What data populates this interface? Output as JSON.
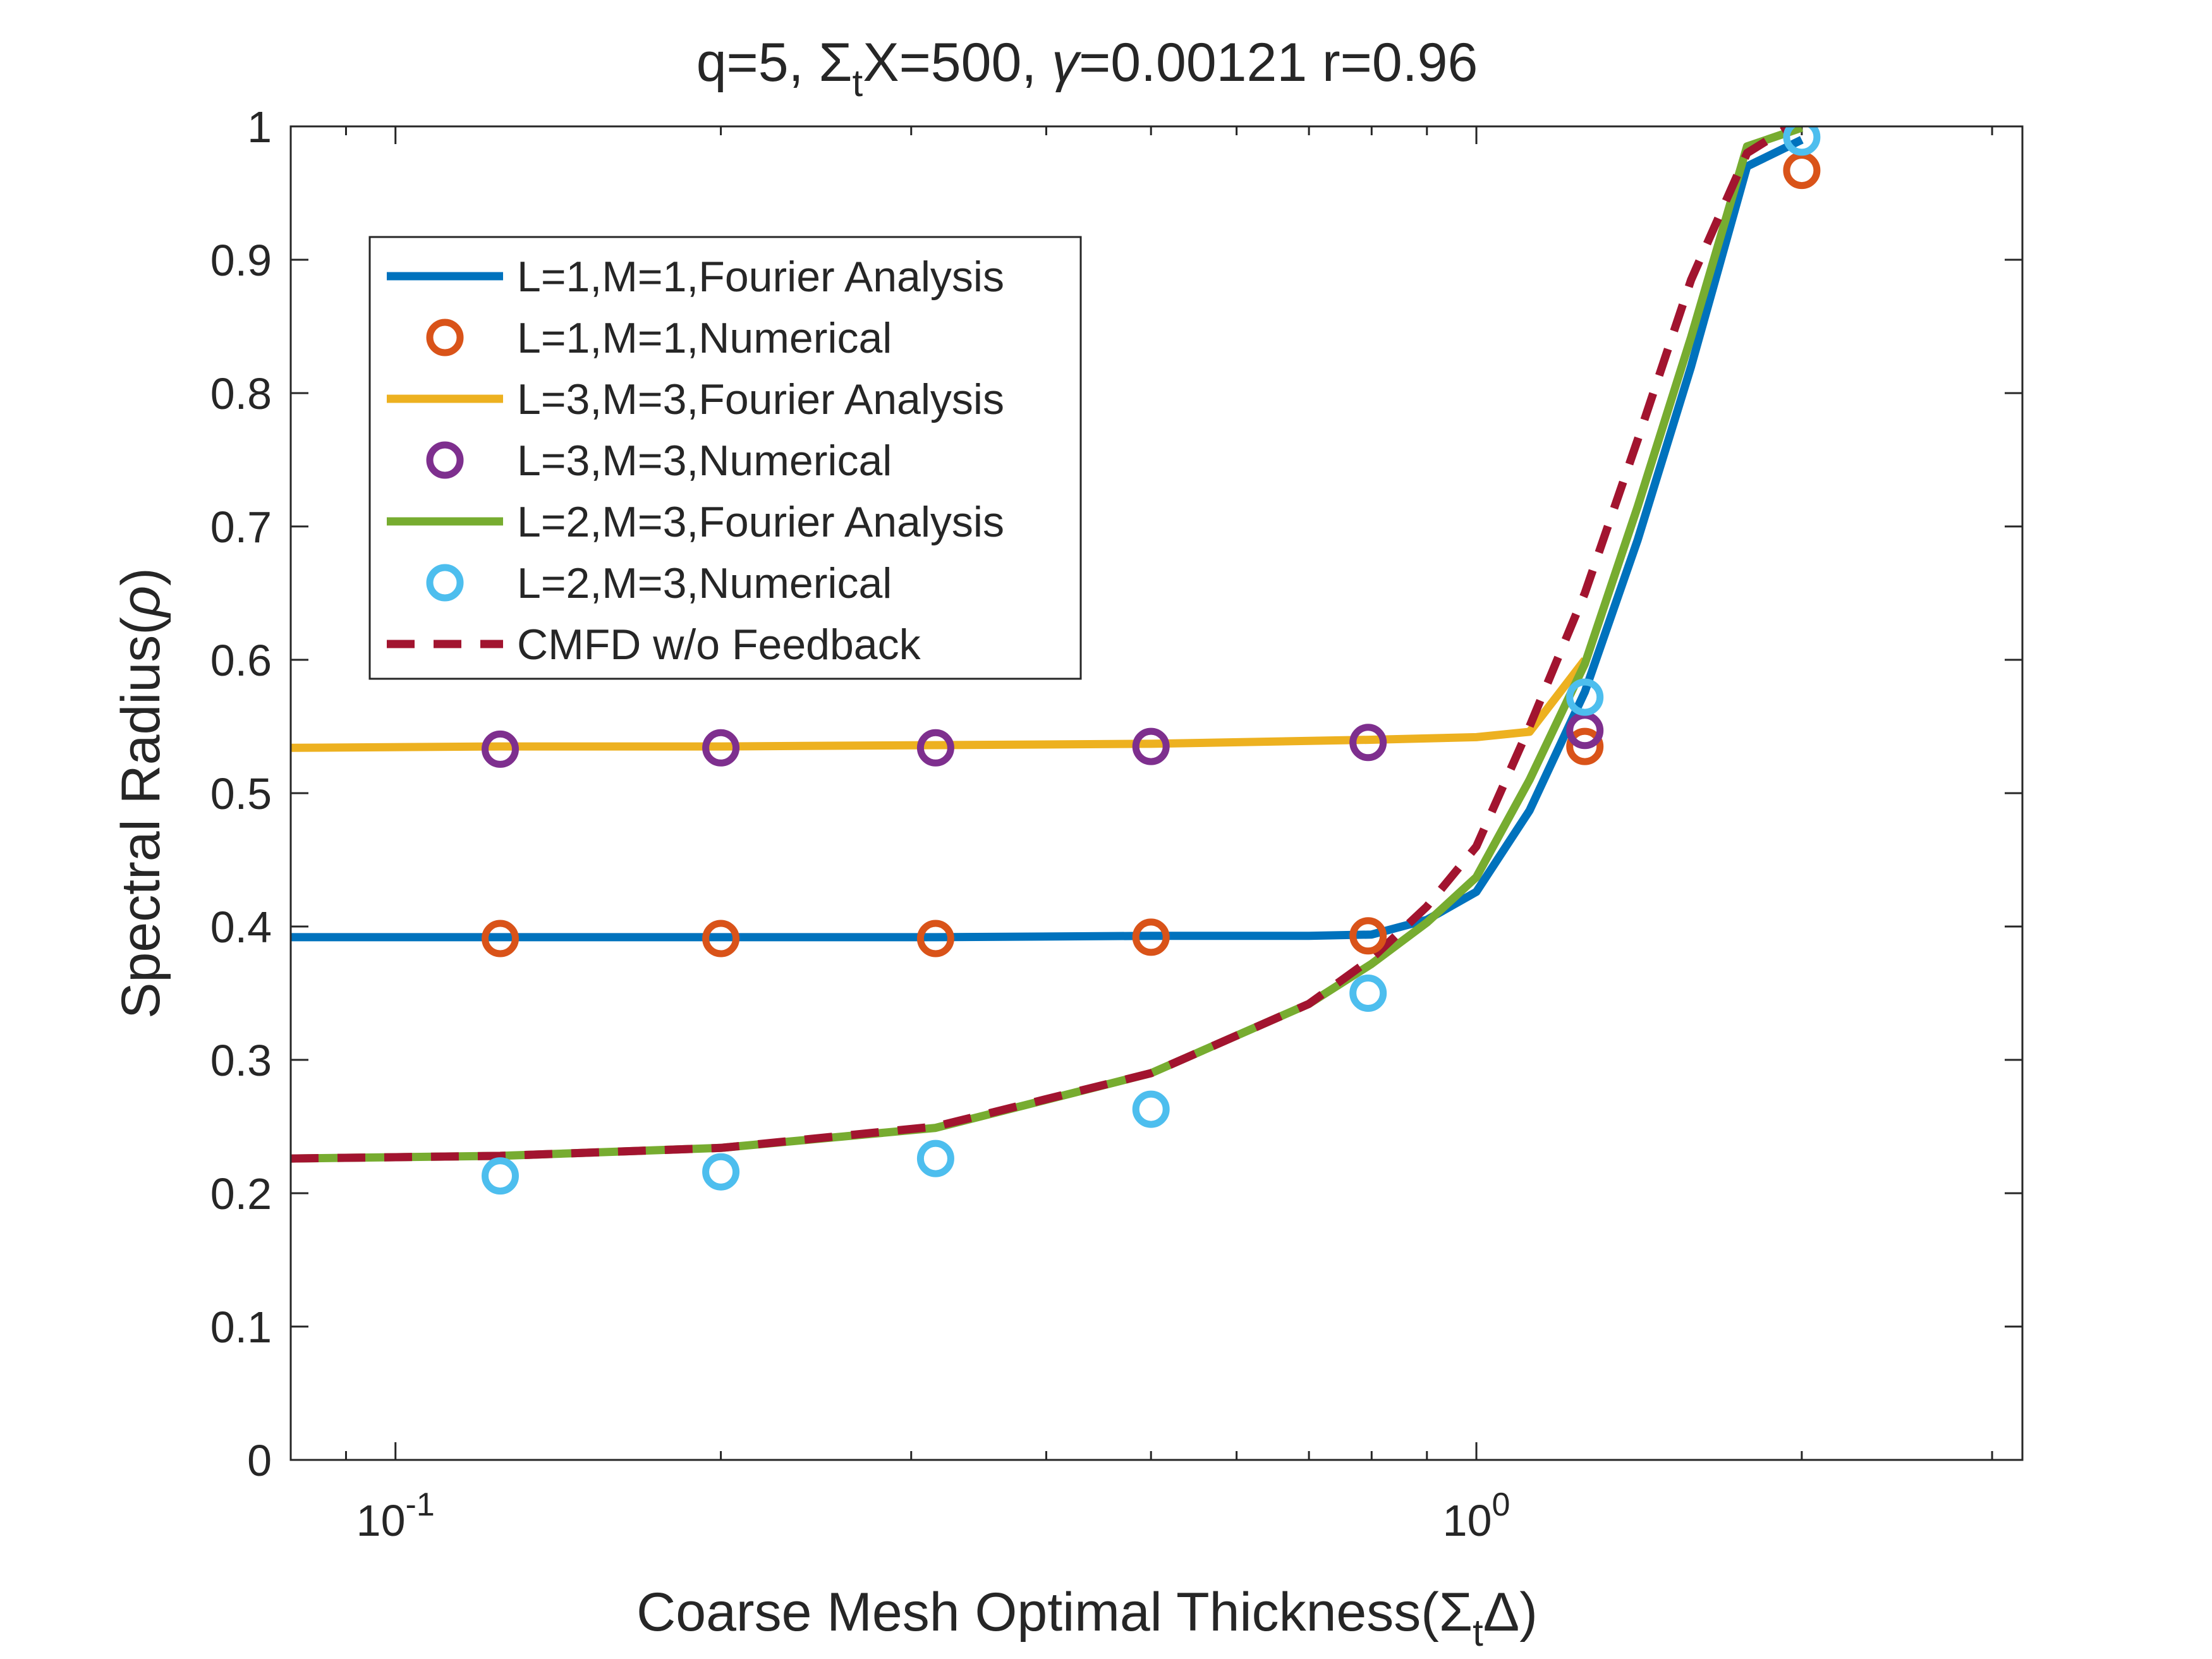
{
  "chart_data": {
    "type": "line",
    "title": "q=5, ΣtX=500,  γ=0.00121 r=0.96",
    "title_parts": {
      "a": "q=5, ",
      "sigma": "Σ",
      "sub": "t",
      "b": "X=500,  ",
      "gamma": "γ",
      "c": "=0.00121 r=0.96"
    },
    "xlabel": "Coarse Mesh Optimal Thickness(ΣtΔ)",
    "xlabel_parts": {
      "a": "Coarse Mesh Optimal Thickness(",
      "sigma": "Σ",
      "sub": "t",
      "delta": "Δ",
      "b": ")"
    },
    "ylabel": "Spectral Radius(ρ)",
    "ylabel_parts": {
      "a": "Spectral Radius(",
      "rho": "ρ",
      "b": ")"
    },
    "xscale": "log",
    "xlim": [
      0.08,
      3.2
    ],
    "ylim": [
      0,
      1
    ],
    "grid": false,
    "legend_position": "upper-left",
    "x_tick_labels": [
      {
        "x": 0.1,
        "base": "10",
        "exp": "-1"
      },
      {
        "x": 1,
        "base": "10",
        "exp": "0"
      }
    ],
    "x_minor_ticks": [
      0.09,
      0.2,
      0.3,
      0.4,
      0.5,
      0.6,
      0.7,
      0.8,
      0.9,
      2,
      3
    ],
    "y_ticks": [
      0,
      0.1,
      0.2,
      0.3,
      0.4,
      0.5,
      0.6,
      0.7,
      0.8,
      0.9,
      1
    ],
    "y_tick_labels": [
      "0",
      "0.1",
      "0.2",
      "0.3",
      "0.4",
      "0.5",
      "0.6",
      "0.7",
      "0.8",
      "0.9",
      "1"
    ],
    "series": [
      {
        "name": "L=1,M=1,Fourier Analysis",
        "style": "line",
        "color": "#0072BD",
        "x": [
          0.08,
          0.125,
          0.2,
          0.316,
          0.5,
          0.7,
          0.8,
          0.9,
          1.0,
          1.12,
          1.26,
          1.41,
          1.58,
          1.78,
          2.0
        ],
        "y": [
          0.392,
          0.392,
          0.392,
          0.392,
          0.393,
          0.393,
          0.394,
          0.405,
          0.426,
          0.487,
          0.576,
          0.69,
          0.82,
          0.97,
          0.99
        ]
      },
      {
        "name": "L=1,M=1,Numerical",
        "style": "marker",
        "color": "#D95319",
        "x": [
          0.125,
          0.2,
          0.316,
          0.5,
          0.794,
          1.26,
          2.0
        ],
        "y": [
          0.391,
          0.391,
          0.391,
          0.392,
          0.393,
          0.535,
          0.967
        ]
      },
      {
        "name": "L=3,M=3,Fourier Analysis",
        "style": "line",
        "color": "#EDB120",
        "x": [
          0.08,
          0.125,
          0.2,
          0.316,
          0.5,
          0.794,
          1.0,
          1.12,
          1.26
        ],
        "y": [
          0.534,
          0.535,
          0.535,
          0.536,
          0.537,
          0.54,
          0.542,
          0.546,
          0.6
        ]
      },
      {
        "name": "L=3,M=3,Numerical",
        "style": "marker",
        "color": "#7E2F8E",
        "x": [
          0.125,
          0.2,
          0.316,
          0.5,
          0.794,
          1.26
        ],
        "y": [
          0.533,
          0.534,
          0.534,
          0.535,
          0.538,
          0.547
        ]
      },
      {
        "name": "L=2,M=3,Fourier Analysis",
        "style": "line",
        "color": "#77AC30",
        "x": [
          0.08,
          0.125,
          0.2,
          0.316,
          0.5,
          0.7,
          0.8,
          0.9,
          1.0,
          1.12,
          1.26,
          1.41,
          1.58,
          1.78,
          2.0
        ],
        "y": [
          0.226,
          0.228,
          0.234,
          0.249,
          0.29,
          0.342,
          0.372,
          0.403,
          0.437,
          0.51,
          0.597,
          0.715,
          0.842,
          0.985,
          0.999
        ]
      },
      {
        "name": "L=2,M=3,Numerical",
        "style": "marker",
        "color": "#4DBEEE",
        "x": [
          0.125,
          0.2,
          0.316,
          0.5,
          0.794,
          1.26,
          2.0
        ],
        "y": [
          0.213,
          0.216,
          0.226,
          0.263,
          0.35,
          0.572,
          0.992
        ]
      },
      {
        "name": "CMFD w/o Feedback",
        "style": "dashed",
        "color": "#A2142F",
        "x": [
          0.08,
          0.125,
          0.2,
          0.316,
          0.5,
          0.7,
          0.8,
          0.9,
          1.0,
          1.12,
          1.26,
          1.41,
          1.58,
          1.78,
          1.95
        ],
        "y": [
          0.226,
          0.228,
          0.234,
          0.25,
          0.29,
          0.342,
          0.376,
          0.415,
          0.46,
          0.55,
          0.65,
          0.765,
          0.885,
          0.98,
          1.0
        ]
      }
    ]
  }
}
